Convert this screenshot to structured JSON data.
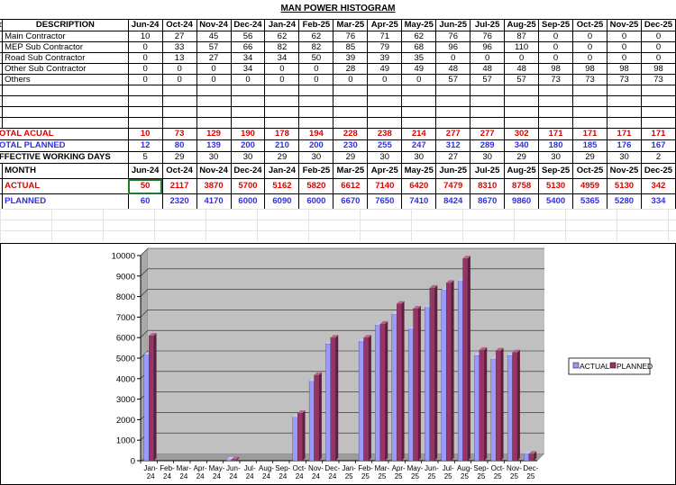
{
  "title": "MAN POWER HISTOGRAM",
  "months": [
    "Jun-24",
    "Oct-24",
    "Nov-24",
    "Dec-24",
    "Jan-24",
    "Feb-25",
    "Mar-25",
    "Apr-25",
    "May-25",
    "Jun-25",
    "Jul-25",
    "Aug-25",
    "Sep-25",
    "Oct-25",
    "Nov-25",
    "Dec-25"
  ],
  "table1": {
    "header": "DESCRIPTION",
    "row_marker": "o",
    "rows": [
      {
        "label": "Main Contractor",
        "values": [
          "10",
          "27",
          "45",
          "56",
          "62",
          "62",
          "76",
          "71",
          "62",
          "76",
          "76",
          "87",
          "0",
          "0",
          "0",
          "0"
        ]
      },
      {
        "label": "MEP Sub Contractor",
        "values": [
          "0",
          "33",
          "57",
          "66",
          "82",
          "82",
          "85",
          "79",
          "68",
          "96",
          "96",
          "110",
          "0",
          "0",
          "0",
          "0"
        ]
      },
      {
        "label": "Road Sub Contractor",
        "values": [
          "0",
          "13",
          "27",
          "34",
          "34",
          "50",
          "39",
          "39",
          "35",
          "0",
          "0",
          "0",
          "0",
          "0",
          "0",
          "0"
        ]
      },
      {
        "label": "Other Sub Contractor",
        "values": [
          "0",
          "0",
          "0",
          "34",
          "0",
          "0",
          "28",
          "49",
          "49",
          "48",
          "48",
          "48",
          "98",
          "98",
          "98",
          "98"
        ]
      },
      {
        "label": "Others",
        "values": [
          "0",
          "0",
          "0",
          "0",
          "0",
          "0",
          "0",
          "0",
          "0",
          "57",
          "57",
          "57",
          "73",
          "73",
          "73",
          "73"
        ]
      }
    ],
    "total_actual": {
      "label": "OTAL ACUAL",
      "values": [
        "10",
        "73",
        "129",
        "190",
        "178",
        "194",
        "228",
        "238",
        "214",
        "277",
        "277",
        "302",
        "171",
        "171",
        "171",
        "171"
      ]
    },
    "total_planned": {
      "label": "OTAL  PLANNED",
      "values": [
        "12",
        "80",
        "139",
        "200",
        "210",
        "200",
        "230",
        "255",
        "247",
        "312",
        "289",
        "340",
        "180",
        "185",
        "176",
        "167"
      ]
    },
    "working_days": {
      "label": "FFECTIVE WORKING DAYS",
      "values": [
        "5",
        "29",
        "30",
        "30",
        "29",
        "30",
        "29",
        "30",
        "30",
        "27",
        "30",
        "29",
        "30",
        "29",
        "30",
        "2"
      ]
    }
  },
  "table2": {
    "header": "MONTH",
    "actual": {
      "label": "ACTUAL",
      "values": [
        "50",
        "2117",
        "3870",
        "5700",
        "5162",
        "5820",
        "6612",
        "7140",
        "6420",
        "7479",
        "8310",
        "8758",
        "5130",
        "4959",
        "5130",
        "342"
      ]
    },
    "planned": {
      "label": "PLANNED",
      "values": [
        "60",
        "2320",
        "4170",
        "6000",
        "6090",
        "6000",
        "6670",
        "7650",
        "7410",
        "8424",
        "8670",
        "9860",
        "5400",
        "5365",
        "5280",
        "334"
      ]
    }
  },
  "chart_data": {
    "type": "bar",
    "categories": [
      "Jan-24",
      "Feb-24",
      "Mar-24",
      "Apr-24",
      "May-24",
      "Jun-24",
      "Jul-24",
      "Aug-24",
      "Sep-24",
      "Oct-24",
      "Nov-24",
      "Dec-24",
      "Jan-25",
      "Feb-25",
      "Mar-25",
      "Apr-25",
      "May-25",
      "Jun-25",
      "Jul-25",
      "Aug-25",
      "Sep-25",
      "Oct-25",
      "Nov-25",
      "Dec-25"
    ],
    "series": [
      {
        "name": "ACTUAL",
        "values": [
          5162,
          0,
          0,
          0,
          0,
          50,
          0,
          0,
          0,
          2117,
          3870,
          5700,
          null,
          5820,
          6612,
          7140,
          6420,
          7479,
          8310,
          8758,
          5130,
          4959,
          5130,
          342
        ]
      },
      {
        "name": "PLANNED",
        "values": [
          6090,
          0,
          0,
          0,
          0,
          60,
          0,
          0,
          0,
          2320,
          4170,
          6000,
          null,
          6000,
          6670,
          7650,
          7410,
          8424,
          8670,
          9860,
          5400,
          5365,
          5280,
          334
        ]
      }
    ],
    "ylim": [
      0,
      10000
    ],
    "yticks": [
      "0",
      "1000",
      "2000",
      "3000",
      "4000",
      "5000",
      "6000",
      "7000",
      "8000",
      "9000",
      "10000"
    ],
    "legend_position": "right",
    "colors": {
      "actual": "#9999ff",
      "planned": "#993366",
      "plot_bg": "#c0c0c0"
    }
  }
}
